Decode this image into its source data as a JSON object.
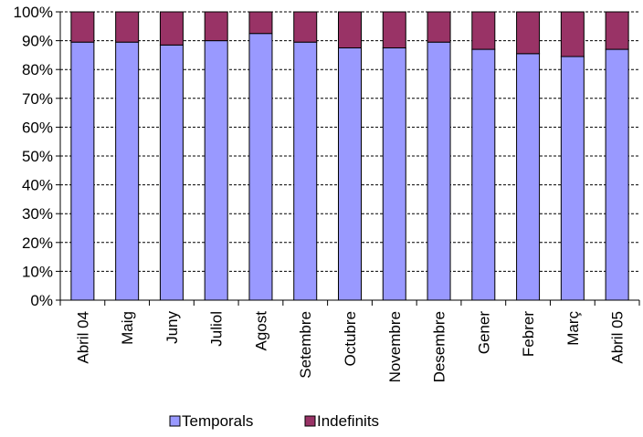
{
  "colors": {
    "temporals": "#9999ff",
    "indefinits": "#993366",
    "axis": "#000000",
    "grid": "#000000"
  },
  "chart_data": {
    "type": "bar",
    "stacked": true,
    "percent_stacked": true,
    "title": "",
    "xlabel": "",
    "ylabel": "",
    "ylim": [
      0,
      100
    ],
    "y_ticks": [
      "0%",
      "10%",
      "20%",
      "30%",
      "40%",
      "50%",
      "60%",
      "70%",
      "80%",
      "90%",
      "100%"
    ],
    "grid": true,
    "legend_position": "bottom",
    "categories": [
      "Abril 04",
      "Maig",
      "Juny",
      "Juliol",
      "Agost",
      "Setembre",
      "Octubre",
      "Novembre",
      "Desembre",
      "Gener",
      "Febrer",
      "Març",
      "Abril 05"
    ],
    "series": [
      {
        "name": "Temporals",
        "values": [
          89.5,
          89.5,
          88.5,
          90,
          92.5,
          89.5,
          87.5,
          87.5,
          89.5,
          87,
          85.5,
          84.5,
          87
        ]
      },
      {
        "name": "Indefinits",
        "values": [
          10.5,
          10.5,
          11.5,
          10,
          7.5,
          10.5,
          12.5,
          12.5,
          10.5,
          13,
          14.5,
          15.5,
          13
        ]
      }
    ]
  }
}
